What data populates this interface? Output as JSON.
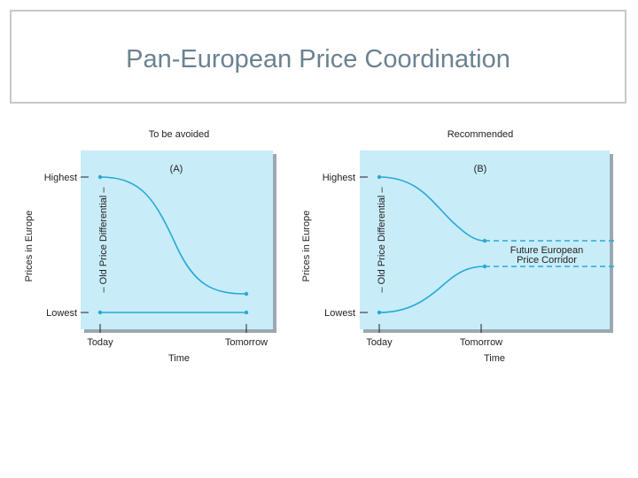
{
  "title": "Pan-European Price Coordination",
  "colors": {
    "panel": "#c9ecf9",
    "curve": "#27a9d6",
    "title": "#6b8290",
    "shadow": "#9aa9b1"
  },
  "panels": [
    {
      "heading": "To be avoided",
      "tag": "(A)",
      "y_high": "Highest",
      "y_low": "Lowest",
      "y_axis_label": "Prices in Europe",
      "differential_label": "– Old Price Differential –",
      "x_start": "Today",
      "x_end": "Tomorrow",
      "x_axis_label": "Time"
    },
    {
      "heading": "Recommended",
      "tag": "(B)",
      "y_high": "Highest",
      "y_low": "Lowest",
      "y_axis_label": "Prices in Europe",
      "differential_label": "– Old Price Differential –",
      "x_start": "Today",
      "x_end": "Tomorrow",
      "x_axis_label": "Time",
      "corridor_line1": "Future European",
      "corridor_line2": "Price Corridor"
    }
  ]
}
